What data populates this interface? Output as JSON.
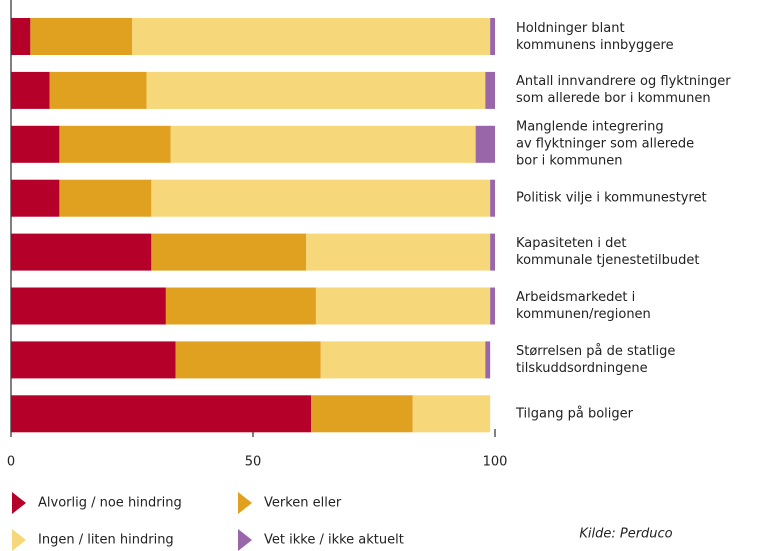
{
  "chart_data": {
    "type": "bar",
    "orientation": "horizontal",
    "stacked": true,
    "categories": [
      "Holdninger blant\nkommunens innbyggere",
      "Antall innvandrere og flyktninger\nsom allerede bor i kommunen",
      "Manglende integrering\nav flyktninger som allerede\nbor i kommunen",
      "Politisk vilje i kommunestyret",
      "Kapasiteten i det\nkommunale tjenestetilbudet",
      "Arbeidsmarkedet i\nkommunen/regionen",
      "Størrelsen på de statlige\ntilskuddsordningene",
      "Tilgang på boliger"
    ],
    "series": [
      {
        "name": "Alvorlig / noe hindring",
        "color": "#b5002a",
        "values": [
          4,
          8,
          10,
          10,
          29,
          32,
          34,
          62
        ]
      },
      {
        "name": "Verken eller",
        "color": "#e0a020",
        "values": [
          21,
          20,
          23,
          19,
          32,
          31,
          30,
          21
        ]
      },
      {
        "name": "Ingen / liten hindring",
        "color": "#f6d77a",
        "values": [
          74,
          70,
          63,
          70,
          38,
          36,
          34,
          16
        ]
      },
      {
        "name": "Vet ikke / ikke aktuelt",
        "color": "#9966aa",
        "values": [
          1,
          2,
          4,
          1,
          1,
          1,
          1,
          0
        ]
      }
    ],
    "xlim": [
      0,
      100
    ],
    "xticks": [
      0,
      50,
      100
    ],
    "source": "Kilde: Perduco"
  }
}
